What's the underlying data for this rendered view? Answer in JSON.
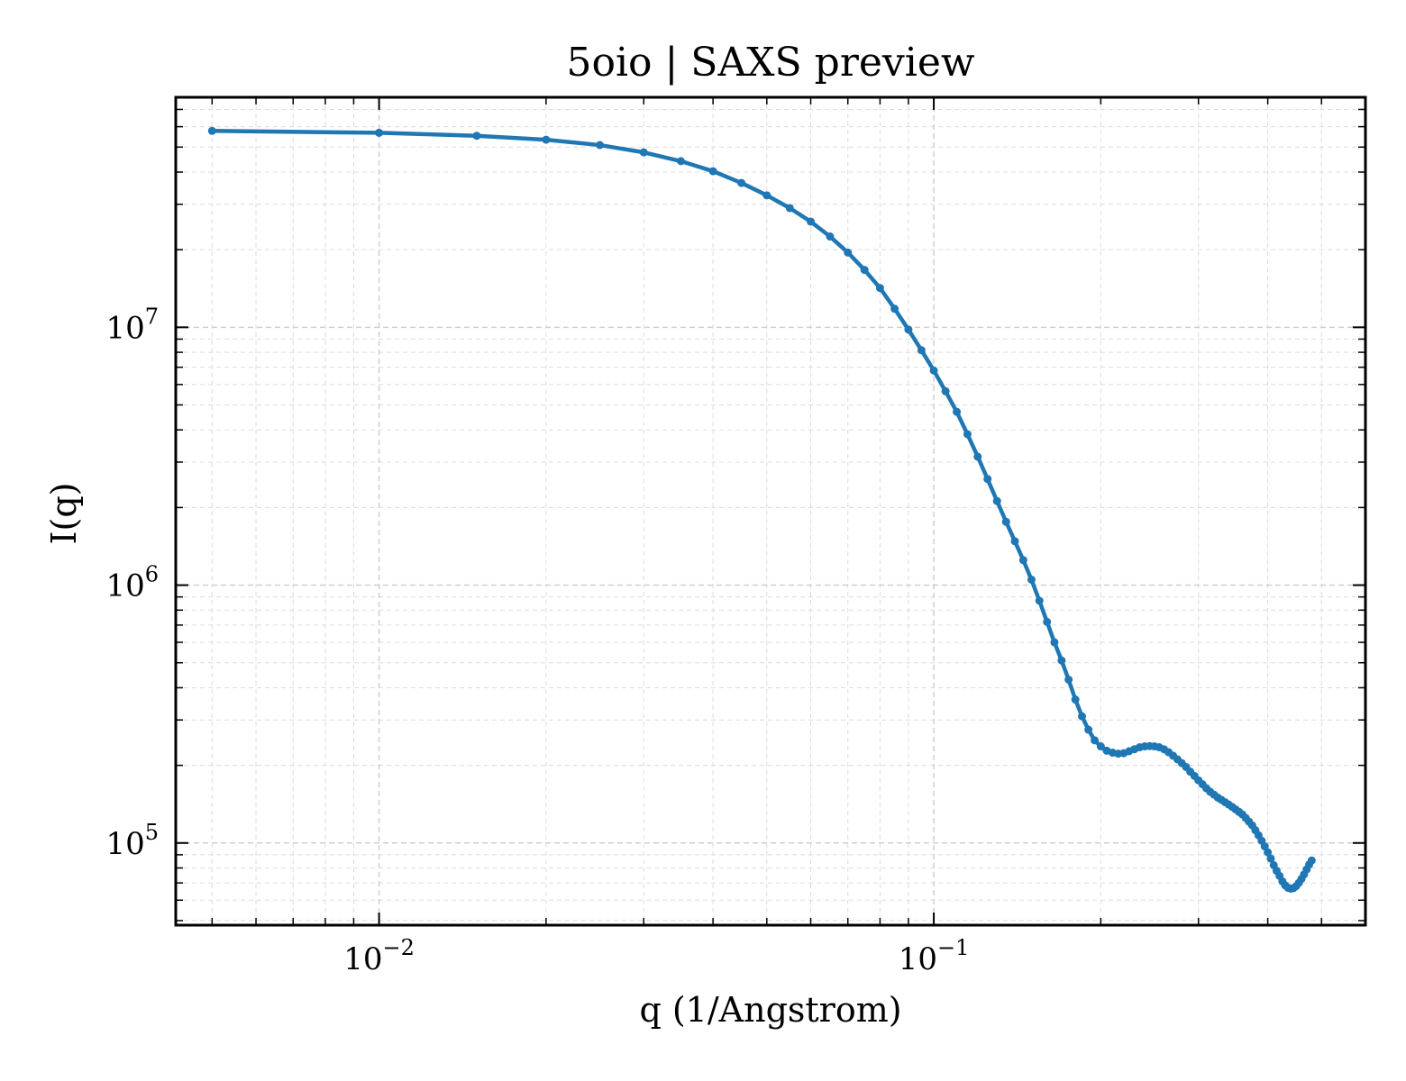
{
  "chart_data": {
    "type": "line",
    "title": "5oio | SAXS preview",
    "xlabel": "q (1/Angstrom)",
    "ylabel": "I(q)",
    "xscale": "log",
    "yscale": "log",
    "xlim": [
      0.0043,
      0.6
    ],
    "ylim": [
      48000,
      78000000
    ],
    "grid": true,
    "legend": "none",
    "x_major_ticks": [
      {
        "value": 0.01,
        "base": "10",
        "exp": "−2"
      },
      {
        "value": 0.1,
        "base": "10",
        "exp": "−1"
      }
    ],
    "y_major_ticks": [
      {
        "value": 100000,
        "base": "10",
        "exp": "5"
      },
      {
        "value": 1000000,
        "base": "10",
        "exp": "6"
      },
      {
        "value": 10000000,
        "base": "10",
        "exp": "7"
      }
    ],
    "series": [
      {
        "color": "#1f77b4",
        "points": [
          [
            0.005,
            57800000
          ],
          [
            0.01,
            56800000
          ],
          [
            0.015,
            55300000
          ],
          [
            0.02,
            53400000
          ],
          [
            0.025,
            50900000
          ],
          [
            0.03,
            47700000
          ],
          [
            0.035,
            44100000
          ],
          [
            0.04,
            40300000
          ],
          [
            0.045,
            36300000
          ],
          [
            0.05,
            32500000
          ],
          [
            0.055,
            29000000
          ],
          [
            0.06,
            25700000
          ],
          [
            0.065,
            22500000
          ],
          [
            0.07,
            19500000
          ],
          [
            0.075,
            16700000
          ],
          [
            0.08,
            14200000
          ],
          [
            0.085,
            11800000
          ],
          [
            0.09,
            9800000
          ],
          [
            0.095,
            8150000
          ],
          [
            0.1,
            6800000
          ],
          [
            0.105,
            5650000
          ],
          [
            0.11,
            4700000
          ],
          [
            0.115,
            3850000
          ],
          [
            0.12,
            3150000
          ],
          [
            0.125,
            2580000
          ],
          [
            0.13,
            2120000
          ],
          [
            0.135,
            1760000
          ],
          [
            0.14,
            1480000
          ],
          [
            0.145,
            1250000
          ],
          [
            0.15,
            1050000
          ],
          [
            0.155,
            870000
          ],
          [
            0.16,
            720000
          ],
          [
            0.165,
            600000
          ],
          [
            0.17,
            510000
          ],
          [
            0.175,
            430000
          ],
          [
            0.18,
            360000
          ],
          [
            0.185,
            310000
          ],
          [
            0.19,
            275000
          ],
          [
            0.195,
            250000
          ],
          [
            0.2,
            237000
          ],
          [
            0.205,
            228000
          ],
          [
            0.21,
            224000
          ],
          [
            0.215,
            222000
          ],
          [
            0.22,
            223000
          ],
          [
            0.225,
            227000
          ],
          [
            0.23,
            231000
          ],
          [
            0.235,
            235000
          ],
          [
            0.24,
            237000
          ],
          [
            0.245,
            237500
          ],
          [
            0.25,
            237000
          ],
          [
            0.255,
            235000
          ],
          [
            0.26,
            231000
          ],
          [
            0.265,
            225000
          ],
          [
            0.27,
            218000
          ],
          [
            0.275,
            211000
          ],
          [
            0.28,
            204000
          ],
          [
            0.285,
            197000
          ],
          [
            0.29,
            189000
          ],
          [
            0.295,
            182000
          ],
          [
            0.3,
            175000
          ],
          [
            0.305,
            169000
          ],
          [
            0.31,
            163000
          ],
          [
            0.315,
            158000
          ],
          [
            0.32,
            154000
          ],
          [
            0.325,
            150000
          ],
          [
            0.33,
            147000
          ],
          [
            0.335,
            144000
          ],
          [
            0.34,
            141000
          ],
          [
            0.345,
            138000
          ],
          [
            0.35,
            135000
          ],
          [
            0.355,
            132000
          ],
          [
            0.36,
            129000
          ],
          [
            0.365,
            125000
          ],
          [
            0.37,
            121000
          ],
          [
            0.375,
            117000
          ],
          [
            0.38,
            112000
          ],
          [
            0.385,
            107000
          ],
          [
            0.39,
            102000
          ],
          [
            0.395,
            97000
          ],
          [
            0.4,
            92000
          ],
          [
            0.405,
            87000
          ],
          [
            0.41,
            82000
          ],
          [
            0.415,
            78000
          ],
          [
            0.42,
            74500
          ],
          [
            0.425,
            71000
          ],
          [
            0.43,
            68500
          ],
          [
            0.435,
            67000
          ],
          [
            0.44,
            66500
          ],
          [
            0.445,
            66800
          ],
          [
            0.45,
            68000
          ],
          [
            0.455,
            70000
          ],
          [
            0.46,
            72500
          ],
          [
            0.465,
            75500
          ],
          [
            0.47,
            79000
          ],
          [
            0.475,
            82500
          ],
          [
            0.48,
            85500
          ]
        ]
      }
    ]
  }
}
